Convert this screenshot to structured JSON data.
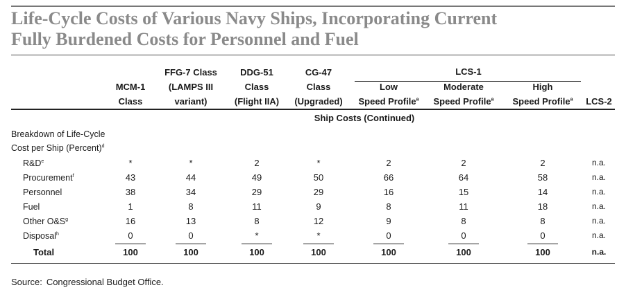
{
  "title": {
    "line1": "Life-Cycle Costs of Various Navy Ships, Incorporating Current",
    "line2": "Fully Burdened Costs for Personnel and Fuel"
  },
  "group_header": "LCS-1",
  "columns": [
    {
      "lines": [
        "",
        "MCM-1",
        "Class"
      ]
    },
    {
      "lines": [
        "FFG-7 Class",
        "(LAMPS III",
        "variant)"
      ]
    },
    {
      "lines": [
        "DDG-51",
        "Class",
        "(Flight IIA)"
      ]
    },
    {
      "lines": [
        "CG-47",
        "Class",
        "(Upgraded)"
      ]
    },
    {
      "lines": [
        "",
        "Low",
        "Speed Profile"
      ],
      "sup": "a"
    },
    {
      "lines": [
        "",
        "Moderate",
        "Speed Profile"
      ],
      "sup": "a"
    },
    {
      "lines": [
        "",
        "High",
        "Speed Profile"
      ],
      "sup": "a"
    },
    {
      "lines": [
        "",
        "",
        "LCS-2"
      ]
    }
  ],
  "section_label": "Ship Costs (Continued)",
  "breakdown_label": {
    "line1": "Breakdown of Life-Cycle",
    "line2": "Cost per Ship (Percent)",
    "sup": "d"
  },
  "rows": [
    {
      "label": "R&D",
      "sup": "e",
      "values": [
        "*",
        "*",
        "2",
        "*",
        "2",
        "2",
        "2",
        "n.a."
      ]
    },
    {
      "label": "Procurement",
      "sup": "f",
      "values": [
        "43",
        "44",
        "49",
        "50",
        "66",
        "64",
        "58",
        "n.a."
      ]
    },
    {
      "label": "Personnel",
      "sup": "",
      "values": [
        "38",
        "34",
        "29",
        "29",
        "16",
        "15",
        "14",
        "n.a."
      ]
    },
    {
      "label": "Fuel",
      "sup": "",
      "values": [
        "1",
        "8",
        "11",
        "9",
        "8",
        "11",
        "18",
        "n.a."
      ]
    },
    {
      "label": "Other O&S",
      "sup": "g",
      "values": [
        "16",
        "13",
        "8",
        "12",
        "9",
        "8",
        "8",
        "n.a."
      ]
    },
    {
      "label": "Disposal",
      "sup": "h",
      "values": [
        "0",
        "0",
        "*",
        "*",
        "0",
        "0",
        "0",
        "n.a."
      ]
    }
  ],
  "total": {
    "label": "Total",
    "values": [
      "100",
      "100",
      "100",
      "100",
      "100",
      "100",
      "100",
      "n.a."
    ]
  },
  "source": {
    "label": "Source:",
    "text": "Congressional Budget Office."
  }
}
